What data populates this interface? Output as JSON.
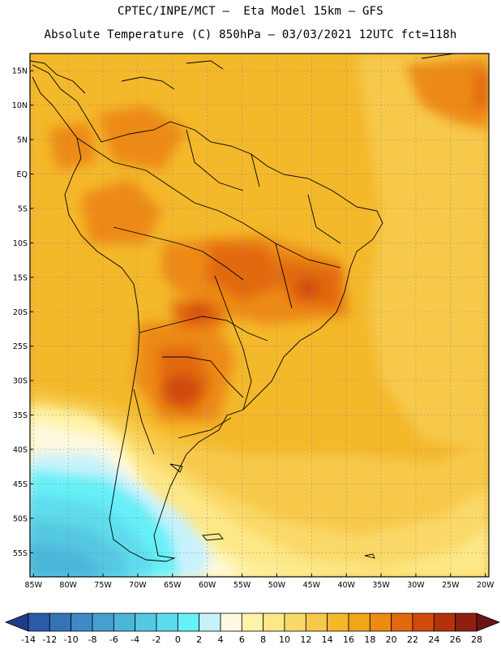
{
  "header": {
    "line1": "CPTEC/INPE/MCT –  Eta Model 15km – GFS",
    "line2": "Absolute Temperature (C) 850hPa – 03/03/2021 12UTC fct=118h"
  },
  "map": {
    "lat_labels": [
      "15N",
      "10N",
      "5N",
      "EQ",
      "5S",
      "10S",
      "15S",
      "20S",
      "25S",
      "30S",
      "35S",
      "40S",
      "45S",
      "50S",
      "55S"
    ],
    "lat_values": [
      15,
      10,
      5,
      0,
      -5,
      -10,
      -15,
      -20,
      -25,
      -30,
      -35,
      -40,
      -45,
      -50,
      -55
    ],
    "lon_labels": [
      "85W",
      "80W",
      "75W",
      "70W",
      "65W",
      "60W",
      "55W",
      "50W",
      "45W",
      "40W",
      "35W",
      "30W",
      "25W",
      "20W"
    ],
    "lon_values": [
      -85,
      -80,
      -75,
      -70,
      -65,
      -60,
      -55,
      -50,
      -45,
      -40,
      -35,
      -30,
      -25,
      -20
    ],
    "extent": {
      "lon_min": -85.5,
      "lon_max": -19.5,
      "lat_min": -58.5,
      "lat_max": 17.5
    }
  },
  "colorbar": {
    "labels": [
      "-14",
      "-12",
      "-10",
      "-8",
      "-6",
      "-4",
      "-2",
      "0",
      "2",
      "4",
      "6",
      "8",
      "10",
      "12",
      "14",
      "16",
      "18",
      "20",
      "22",
      "24",
      "26",
      "28"
    ],
    "colors": [
      "#1d3d8c",
      "#2a5aa8",
      "#3473b8",
      "#3e8ac6",
      "#45a0d0",
      "#4cb5da",
      "#55c8e2",
      "#5edced",
      "#66f0f7",
      "#c8f2fb",
      "#fff8e0",
      "#fff3a8",
      "#fde888",
      "#fbd969",
      "#f7c94b",
      "#f4b82b",
      "#f2a516",
      "#ed8a12",
      "#e2690e",
      "#cf4a0b",
      "#b3320b",
      "#8e2010",
      "#6b1414"
    ]
  }
}
